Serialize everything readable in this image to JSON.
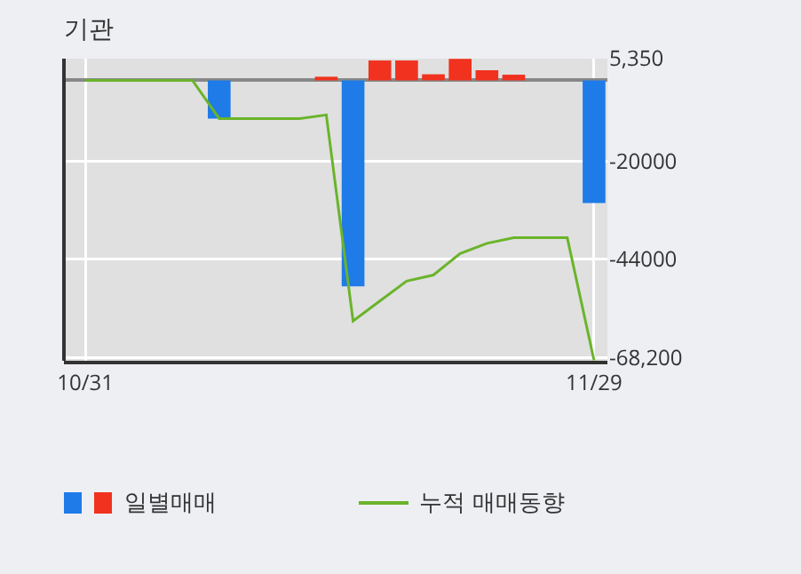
{
  "chart_data": {
    "type": "bar",
    "title": "기관",
    "categories": [
      "10/31",
      null,
      null,
      null,
      null,
      null,
      null,
      null,
      null,
      null,
      null,
      null,
      null,
      null,
      null,
      null,
      null,
      null,
      null,
      "11/29"
    ],
    "series": [
      {
        "name": "일별매매",
        "values": [
          null,
          null,
          null,
          null,
          null,
          -9400,
          null,
          null,
          null,
          900,
          -50700,
          4900,
          4900,
          1500,
          5300,
          2500,
          1400,
          null,
          null,
          -30200
        ],
        "colors": [
          null,
          null,
          null,
          null,
          null,
          "#1e7be8",
          null,
          null,
          null,
          "#f0321e",
          "#1e7be8",
          "#f0321e",
          "#f0321e",
          "#f0321e",
          "#f0321e",
          "#f0321e",
          "#f0321e",
          null,
          null,
          "#1e7be8"
        ]
      },
      {
        "type": "line",
        "name": "누적 매매동향",
        "color": "#6ab42a",
        "values": [
          0,
          0,
          0,
          0,
          0,
          -9400,
          -9400,
          -9400,
          -9400,
          -8500,
          -59200,
          -54300,
          -49400,
          -47900,
          -42600,
          -40100,
          -38700,
          -38700,
          -38700,
          -68900
        ]
      }
    ],
    "ylim": [
      -69000,
      5350
    ],
    "yticks": [
      {
        "value": 5350,
        "label": "5,350"
      },
      {
        "value": -20000,
        "label": "-20000"
      },
      {
        "value": -44000,
        "label": "-44000"
      },
      {
        "value": -68200,
        "label": "-68,200"
      }
    ],
    "grid": true,
    "legend": "bottom",
    "marker": "none",
    "line_style": "solid"
  }
}
